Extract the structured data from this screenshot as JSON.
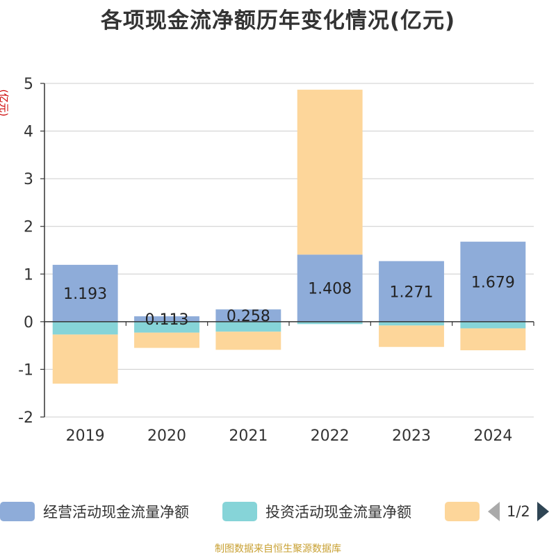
{
  "chart_data": {
    "type": "bar",
    "stacked": true,
    "title": "各项现金流净额历年变化情况(亿元)",
    "ylabel": "(亿元)",
    "categories": [
      "2019",
      "2020",
      "2021",
      "2022",
      "2023",
      "2024"
    ],
    "ylim": [
      -2,
      5
    ],
    "yticks": [
      -2,
      -1,
      0,
      1,
      2,
      3,
      4,
      5
    ],
    "grid": true,
    "series": [
      {
        "name": "经营活动现金流量净额",
        "color": "#8eacd9",
        "values": [
          1.193,
          0.113,
          0.258,
          1.408,
          1.271,
          1.679
        ],
        "labels": [
          "1.193",
          "0.113",
          "0.258",
          "1.408",
          "1.271",
          "1.679"
        ]
      },
      {
        "name": "投资活动现金流量净额",
        "color": "#86d4d8",
        "values": [
          -0.27,
          -0.23,
          -0.21,
          -0.05,
          -0.08,
          -0.14
        ]
      },
      {
        "name": "",
        "color": "#fdd69a",
        "values": [
          -1.03,
          -0.32,
          -0.38,
          3.46,
          -0.45,
          -0.46
        ]
      }
    ]
  },
  "legend": {
    "items": [
      {
        "label": "经营活动现金流量净额",
        "color": "#8eacd9"
      },
      {
        "label": "投资活动现金流量净额",
        "color": "#86d4d8"
      },
      {
        "label": "",
        "color": "#fdd69a"
      }
    ],
    "page": "1/2"
  },
  "source": "制图数据来自恒生聚源数据库"
}
